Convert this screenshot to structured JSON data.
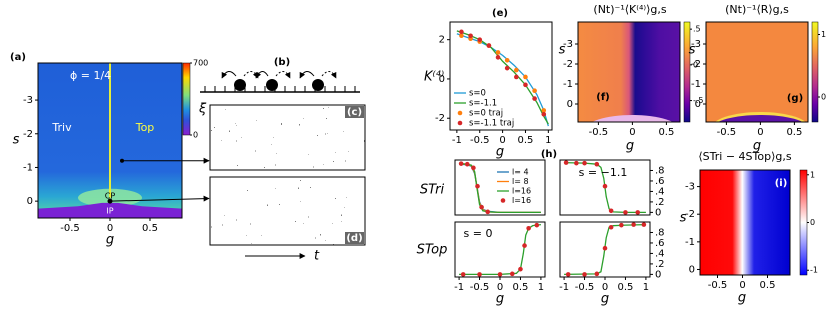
{
  "chart_data": [
    {
      "type": "heatmap",
      "panel_label": "(a)",
      "annotations": [
        "ϕ = 1/4",
        "Triv",
        "Top",
        "CP",
        "IP"
      ],
      "xlabel": "g",
      "ylabel": "s",
      "xlim": [
        -0.9,
        0.9
      ],
      "ylim": [
        0.5,
        -4.1
      ],
      "xticks": [
        -0.5,
        0,
        0.5
      ],
      "yticks": [
        -3,
        -2,
        -1,
        0
      ],
      "colorbar": {
        "label": "ξ",
        "lim": [
          0,
          700
        ],
        "ticks": [
          0,
          700
        ]
      }
    },
    {
      "type": "diagram",
      "panel_label": "(b)"
    },
    {
      "type": "image",
      "panel_label": "(c)"
    },
    {
      "type": "image",
      "panel_label": "(d)",
      "xlabel": "t"
    },
    {
      "type": "line",
      "panel_label": "(e)",
      "xlabel": "g",
      "ylabel": "K⁽⁴⁾",
      "xlim": [
        -1.15,
        1.08
      ],
      "ylim": [
        -2.6,
        2.9
      ],
      "xticks": [
        -1,
        -0.5,
        0,
        0.5,
        1
      ],
      "yticks": [
        -2,
        0,
        2
      ],
      "legend": "lower left",
      "series": [
        {
          "name": "s=0",
          "color": "#1f9bd6",
          "style": "line",
          "x": [
            -1,
            -0.75,
            -0.5,
            -0.25,
            0,
            0.25,
            0.5,
            0.75,
            0.9,
            1
          ],
          "values": [
            2.3,
            2.1,
            1.9,
            1.6,
            1.2,
            0.7,
            0.1,
            -0.8,
            -1.6,
            -2.4
          ]
        },
        {
          "name": "s=-1.1",
          "color": "#2ca02c",
          "style": "line",
          "x": [
            -1,
            -0.75,
            -0.5,
            -0.25,
            0,
            0.25,
            0.5,
            0.75,
            0.9,
            1
          ],
          "values": [
            2.45,
            2.25,
            2.0,
            1.6,
            0.9,
            0.35,
            -0.3,
            -1.2,
            -1.9,
            -2.3
          ]
        },
        {
          "name": "s=0 traj",
          "color": "#ff7f0e",
          "style": "dots",
          "x": [
            -0.9,
            -0.7,
            -0.5,
            -0.3,
            -0.1,
            0.1,
            0.3,
            0.5,
            0.7,
            0.9
          ],
          "values": [
            2.2,
            2.05,
            1.9,
            1.7,
            1.35,
            0.95,
            0.45,
            0.1,
            -0.6,
            -1.6
          ]
        },
        {
          "name": "s=-1.1 traj",
          "color": "#d62728",
          "style": "dots",
          "x": [
            -0.9,
            -0.7,
            -0.5,
            -0.3,
            -0.1,
            0.1,
            0.3,
            0.5,
            0.7,
            0.9
          ],
          "values": [
            2.4,
            2.2,
            2.0,
            1.7,
            1.1,
            0.55,
            0.1,
            -0.3,
            -1.0,
            -1.8
          ]
        }
      ]
    },
    {
      "type": "heatmap",
      "title": "(Nt)⁻¹⟨K⁽⁴⁾⟩g,s",
      "panel_label": "(f)",
      "xlabel": "g",
      "ylabel": "s",
      "xlim": [
        -0.8,
        0.7
      ],
      "ylim": [
        0.9,
        -4.1
      ],
      "xticks": [
        -0.5,
        0,
        0.5
      ],
      "yticks": [
        -3,
        -2,
        -1,
        0
      ],
      "colorbar": {
        "lim": [
          -0.8,
          0.6
        ],
        "ticks": [
          {
            "value": 0.5,
            "label": ".5"
          },
          0,
          {
            "value": -0.5,
            "label": "-.5"
          }
        ]
      }
    },
    {
      "type": "heatmap",
      "title": "(Nt)⁻¹⟨R⟩g,s",
      "panel_label": "(g)",
      "xlabel": "g",
      "ylabel": "s",
      "xlim": [
        -0.8,
        0.7
      ],
      "ylim": [
        0.9,
        -4.1
      ],
      "xticks": [
        -0.5,
        0,
        0.5
      ],
      "yticks": [
        -3,
        -2,
        -1,
        0
      ],
      "colorbar": {
        "lim": [
          -0.4,
          1.2
        ],
        "ticks": [
          1,
          0
        ]
      }
    },
    {
      "type": "line",
      "panel_label": "(h)",
      "ylabel": "STri",
      "xlim": [
        -1.1,
        1.1
      ],
      "ylim": [
        -0.05,
        1.0
      ],
      "legend": "center right",
      "series": [
        {
          "name": "l= 4",
          "color": "#1f77b4",
          "style": "line",
          "x": [
            -1,
            -0.8,
            -0.7,
            -0.62,
            -0.56,
            -0.5,
            -0.42,
            -0.3,
            0,
            0.5,
            1
          ],
          "values": [
            0.92,
            0.91,
            0.88,
            0.74,
            0.48,
            0.2,
            0.06,
            0.02,
            0,
            0,
            0
          ]
        },
        {
          "name": "l= 8",
          "color": "#ff7f0e",
          "style": "line",
          "x": [
            -1,
            -0.8,
            -0.7,
            -0.62,
            -0.56,
            -0.5,
            -0.42,
            -0.3,
            0,
            0.5,
            1
          ],
          "values": [
            0.93,
            0.92,
            0.89,
            0.76,
            0.47,
            0.18,
            0.05,
            0.01,
            0,
            0,
            0
          ]
        },
        {
          "name": "l=16",
          "color": "#2ca02c",
          "style": "line",
          "x": [
            -1,
            -0.8,
            -0.7,
            -0.62,
            -0.56,
            -0.5,
            -0.42,
            -0.3,
            0,
            0.5,
            1
          ],
          "values": [
            0.93,
            0.92,
            0.9,
            0.78,
            0.45,
            0.15,
            0.03,
            0.01,
            0,
            0,
            0
          ]
        },
        {
          "name": "l=16",
          "color": "#d62728",
          "style": "dots",
          "x": [
            -0.95,
            -0.8,
            -0.65,
            -0.55,
            -0.45,
            -0.3
          ],
          "values": [
            0.93,
            0.92,
            0.85,
            0.5,
            0.1,
            0.01
          ]
        }
      ]
    },
    {
      "type": "line",
      "annotations": [
        "s = −1.1"
      ],
      "xlim": [
        -1.1,
        1.1
      ],
      "ylim": [
        -0.05,
        1.0
      ],
      "yticks": [
        0,
        {
          "value": 0.2,
          "label": ".2"
        },
        {
          "value": 0.4,
          "label": ".4"
        },
        {
          "value": 0.6,
          "label": ".6"
        },
        {
          "value": 0.8,
          "label": ".8"
        }
      ],
      "series": [
        {
          "color": "#2ca02c",
          "style": "line",
          "x": [
            -1,
            -0.5,
            -0.2,
            -0.1,
            -0.03,
            0.03,
            0.1,
            0.2,
            0.5,
            1
          ],
          "values": [
            0.95,
            0.94,
            0.92,
            0.86,
            0.65,
            0.3,
            0.07,
            0.01,
            0,
            0
          ]
        },
        {
          "color": "#d62728",
          "style": "dots",
          "x": [
            -0.95,
            -0.7,
            -0.5,
            -0.2,
            0,
            0.15,
            0.5,
            0.8
          ],
          "values": [
            0.95,
            0.94,
            0.94,
            0.92,
            0.5,
            0.03,
            0,
            0
          ]
        }
      ]
    },
    {
      "type": "line",
      "annotations": [
        "s = 0"
      ],
      "xlabel": "g",
      "ylabel": "STop",
      "xlim": [
        -1.1,
        1.1
      ],
      "ylim": [
        -0.05,
        1.0
      ],
      "xticks": [
        -1,
        -0.5,
        0,
        0.5,
        1
      ],
      "series": [
        {
          "color": "#2ca02c",
          "style": "line",
          "x": [
            -1,
            0,
            0.4,
            0.5,
            0.57,
            0.63,
            0.7,
            0.8,
            1
          ],
          "values": [
            0,
            0,
            0.02,
            0.1,
            0.4,
            0.75,
            0.88,
            0.93,
            0.95
          ]
        },
        {
          "color": "#d62728",
          "style": "dots",
          "x": [
            -0.9,
            -0.5,
            0,
            0.3,
            0.5,
            0.6,
            0.7,
            0.9
          ],
          "values": [
            0,
            0,
            0,
            0.01,
            0.1,
            0.55,
            0.88,
            0.94
          ]
        }
      ]
    },
    {
      "type": "line",
      "xlabel": "g",
      "xlim": [
        -1.1,
        1.1
      ],
      "ylim": [
        -0.05,
        1.0
      ],
      "xticks": [
        -1,
        -0.5,
        0,
        0.5,
        1
      ],
      "yticks": [
        0,
        {
          "value": 0.2,
          "label": ".2"
        },
        {
          "value": 0.4,
          "label": ".4"
        },
        {
          "value": 0.6,
          "label": ".6"
        },
        {
          "value": 0.8,
          "label": ".8"
        }
      ],
      "series": [
        {
          "color": "#2ca02c",
          "style": "line",
          "x": [
            -1,
            -0.2,
            -0.1,
            -0.03,
            0.03,
            0.1,
            0.2,
            0.5,
            1
          ],
          "values": [
            0,
            0.01,
            0.05,
            0.35,
            0.7,
            0.9,
            0.93,
            0.94,
            0.95
          ]
        },
        {
          "color": "#d62728",
          "style": "dots",
          "x": [
            -0.9,
            -0.5,
            -0.2,
            0,
            0.15,
            0.4,
            0.7,
            0.95
          ],
          "values": [
            0,
            0,
            0.01,
            0.5,
            0.9,
            0.94,
            0.95,
            0.95
          ]
        }
      ]
    },
    {
      "type": "heatmap",
      "title": "⟨STri − 4STop⟩g,s",
      "panel_label": "(i)",
      "xlabel": "g",
      "ylabel": "s",
      "xlim": [
        -0.85,
        0.95
      ],
      "ylim": [
        0.2,
        -3.6
      ],
      "xticks": [
        -0.5,
        0,
        0.5
      ],
      "yticks": [
        -3,
        -2,
        -1,
        0
      ],
      "colorbar": {
        "lim": [
          -1.1,
          1.1
        ],
        "ticks": [
          1,
          0,
          -1
        ]
      }
    }
  ]
}
